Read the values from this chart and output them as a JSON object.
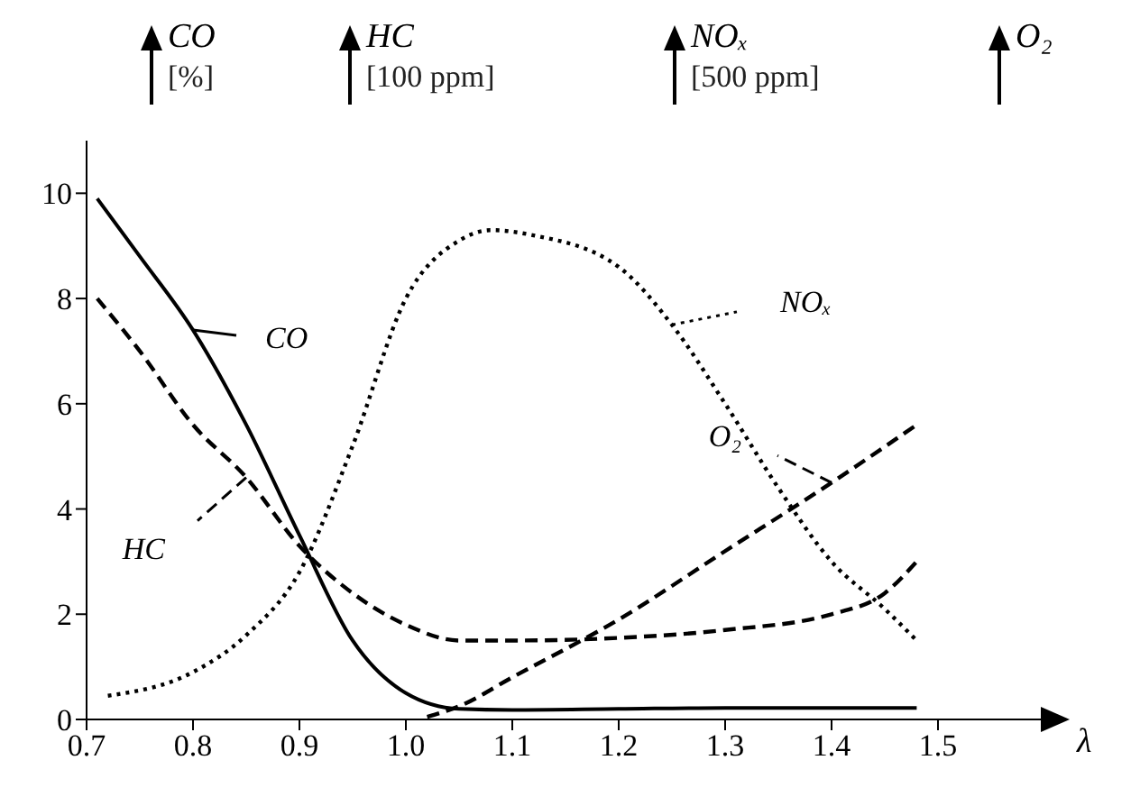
{
  "chart_data": {
    "type": "line",
    "xlabel": "λ",
    "annotations": [
      "[%]",
      "[100 ppm]",
      "[500 ppm]"
    ],
    "xlim": [
      0.7,
      1.6
    ],
    "xticks": [
      0.7,
      0.8,
      0.9,
      {
        "value": 1,
        "label": "1.0"
      },
      1.1,
      1.2,
      1.3,
      1.4,
      1.5
    ],
    "ylim": [
      0,
      11
    ],
    "yticks": [
      0,
      2,
      4,
      6,
      8,
      10
    ],
    "grid": false,
    "legend": "top",
    "marker": "none",
    "series": [
      {
        "name": "CO",
        "color": "#000000",
        "line_style": "solid",
        "x": [
          0.71,
          0.75,
          0.8,
          0.85,
          0.9,
          0.95,
          1.0,
          1.05,
          1.1,
          1.2,
          1.3,
          1.4,
          1.48
        ],
        "values": [
          9.9,
          8.8,
          7.4,
          5.6,
          3.5,
          1.5,
          0.5,
          0.2,
          0.18,
          0.2,
          0.22,
          0.22,
          0.22
        ]
      },
      {
        "name": "HC",
        "color": "#000000",
        "line_style": "dashed",
        "x": [
          0.71,
          0.75,
          0.8,
          0.85,
          0.9,
          0.95,
          1.0,
          1.05,
          1.1,
          1.2,
          1.3,
          1.4,
          1.45,
          1.48
        ],
        "values": [
          8,
          7,
          5.6,
          4.6,
          3.3,
          2.4,
          1.8,
          1.5,
          1.5,
          1.55,
          1.7,
          2.0,
          2.4,
          3.0
        ]
      },
      {
        "name": "NOₓ",
        "color": "#000000",
        "line_style": "dotted",
        "x": [
          0.72,
          0.8,
          0.85,
          0.9,
          0.95,
          1.0,
          1.05,
          1.08,
          1.12,
          1.2,
          1.25,
          1.3,
          1.35,
          1.4,
          1.45,
          1.48
        ],
        "values": [
          0.45,
          0.9,
          1.6,
          2.8,
          5.2,
          8.0,
          9.1,
          9.3,
          9.2,
          8.6,
          7.5,
          6.0,
          4.4,
          3.0,
          2.1,
          1.5
        ]
      },
      {
        "name": "O₂",
        "color": "#000000",
        "line_style": "dashed",
        "x": [
          1.02,
          1.05,
          1.1,
          1.2,
          1.3,
          1.4,
          1.48
        ],
        "values": [
          0.05,
          0.25,
          0.8,
          1.9,
          3.2,
          4.5,
          5.6
        ]
      }
    ]
  }
}
